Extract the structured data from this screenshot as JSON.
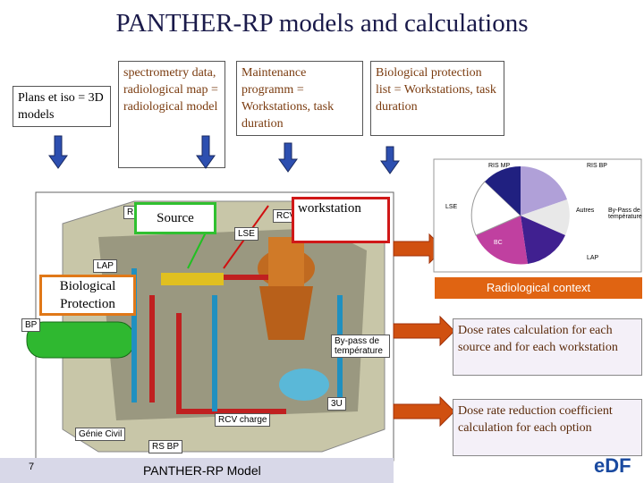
{
  "title": "PANTHER-RP models and calculations",
  "inputs": [
    {
      "label": "Plans et iso = 3D models"
    },
    {
      "label": "spectrometry data, radiological map = radiological model"
    },
    {
      "label": "Maintenance programm = Workstations, task duration"
    },
    {
      "label": "Biological protection list = Workstations, task duration"
    }
  ],
  "model_labels": [
    "RI",
    "LSE",
    "RCV",
    "LAP",
    "BP",
    "By-pass de température",
    "3U",
    "RCV charge",
    "Génie Civil",
    "RS BP"
  ],
  "overlays": {
    "source": "Source",
    "workstation": "workstation",
    "protection": "Biological Protection"
  },
  "pie_labels": [
    "RIS BP",
    "RIS MP",
    "LSE",
    "Autres",
    "By-Pass de température",
    "BC",
    "LAP"
  ],
  "outputs": [
    {
      "label": "Radiological context"
    },
    {
      "label": "Dose rates calculation for each source and for each workstation"
    },
    {
      "label": "Dose rate reduction coefficient calculation for each option"
    }
  ],
  "footer": {
    "page": "7",
    "caption": "PANTHER-RP Model",
    "logo": "eDF"
  }
}
